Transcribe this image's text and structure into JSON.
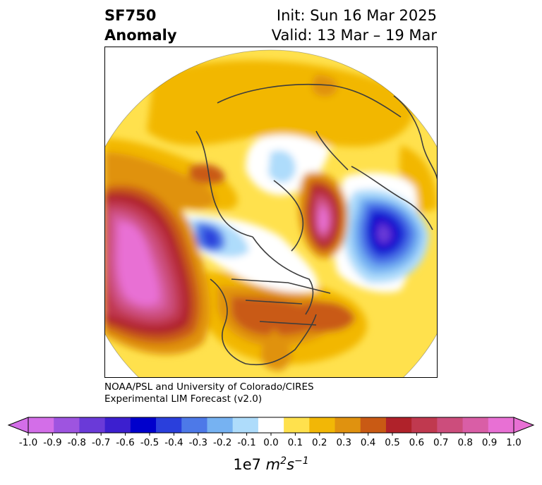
{
  "header": {
    "title_line1": "SF750",
    "title_line2": "Anomaly",
    "init_text": "Init: Sun 16 Mar 2025",
    "valid_text": "Valid: 13 Mar – 19 Mar"
  },
  "credit": {
    "line1": "NOAA/PSL and University of Colorado/CIRES",
    "line2": "Experimental LIM Forecast (v2.0)"
  },
  "colorbar": {
    "ticks": [
      "-1.0",
      "-0.9",
      "-0.8",
      "-0.7",
      "-0.6",
      "-0.5",
      "-0.4",
      "-0.3",
      "-0.2",
      "-0.1",
      "0.0",
      "0.1",
      "0.2",
      "0.3",
      "0.4",
      "0.5",
      "0.6",
      "0.7",
      "0.8",
      "0.9",
      "1.0"
    ],
    "colors": [
      "#d36ee8",
      "#9e54e0",
      "#6a3ad8",
      "#3c1fcf",
      "#0000cc",
      "#2a3fdc",
      "#4d79e8",
      "#76b2f2",
      "#aedcfb",
      "#ffffff",
      "#ffe14d",
      "#f2b706",
      "#e0920f",
      "#c95a14",
      "#b0222a",
      "#c0394f",
      "#cc4d7c",
      "#d95ea6",
      "#e870d4"
    ],
    "unit_base": "1e7 ",
    "unit_m": "m",
    "unit_m_exp": "2",
    "unit_s": "s",
    "unit_s_exp": "−1"
  }
}
